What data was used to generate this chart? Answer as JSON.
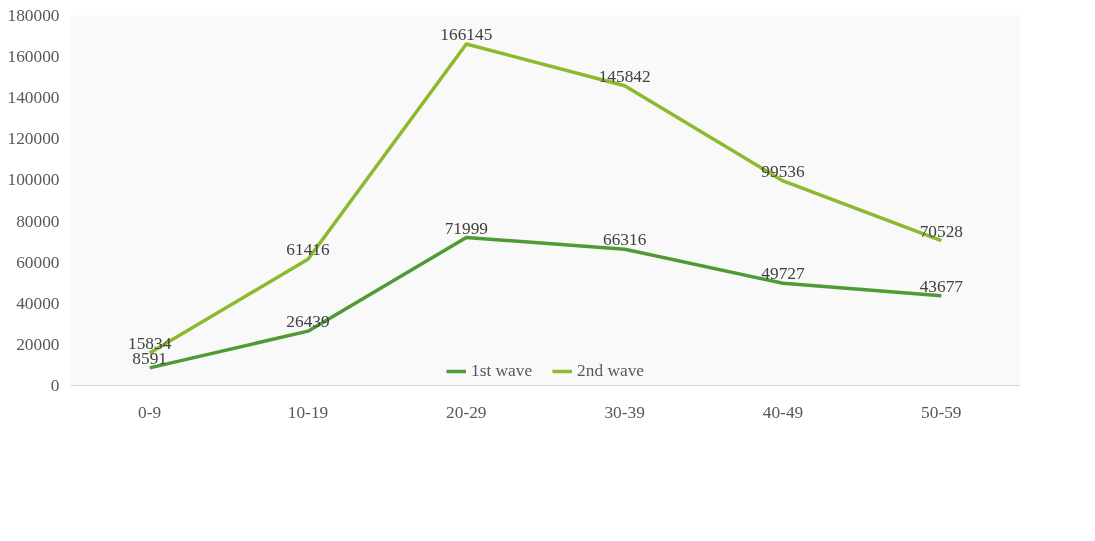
{
  "chart_data": {
    "type": "line",
    "categories": [
      "0-9",
      "10-19",
      "20-29",
      "30-39",
      "40-49",
      "50-59"
    ],
    "series": [
      {
        "name": "1st wave",
        "color": "#4f9a35",
        "values": [
          8591,
          26439,
          71999,
          66316,
          49727,
          43677
        ]
      },
      {
        "name": "2nd wave",
        "color": "#8cb92e",
        "values": [
          15834,
          61416,
          166145,
          145842,
          99536,
          70528
        ]
      }
    ],
    "ylim": [
      0,
      180000
    ],
    "yticks": [
      0,
      20000,
      40000,
      60000,
      80000,
      100000,
      120000,
      140000,
      160000,
      180000
    ],
    "data_labels": true,
    "legend": "bottom",
    "grid": false,
    "marker": "none",
    "line_style": "solid"
  }
}
